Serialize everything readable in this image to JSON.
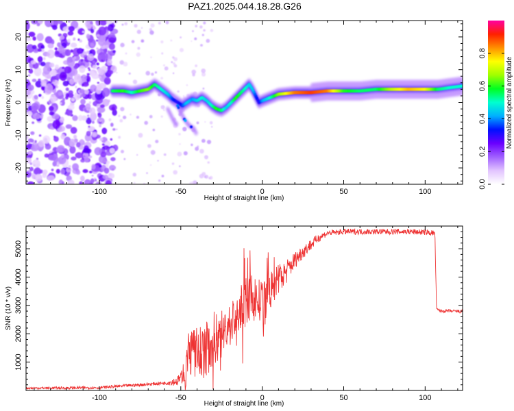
{
  "title": "PAZ1.2025.044.18.28.G26",
  "chart_data": [
    {
      "type": "heatmap",
      "name": "spectrogram",
      "xlabel": "Height of straight line (km)",
      "ylabel": "Frequency (Hz)",
      "xlim": [
        -145,
        123
      ],
      "ylim": [
        -25,
        25
      ],
      "xticks": [
        -100,
        -50,
        0,
        50,
        100
      ],
      "yticks": [
        -20,
        -10,
        0,
        10,
        20
      ],
      "colorbar": {
        "label": "Normalized spectral amplitude",
        "range": [
          0,
          1
        ],
        "ticks": [
          0.0,
          0.2,
          0.4,
          0.6,
          0.8
        ],
        "colors": [
          "#ffffff",
          "#e2c4ff",
          "#a060ff",
          "#6a00ff",
          "#0010ff",
          "#00b0ff",
          "#00ffd0",
          "#00ff20",
          "#a0ff00",
          "#ffff00",
          "#ff9000",
          "#ff2000",
          "#ff00a0"
        ]
      },
      "ridge": {
        "x": [
          -92,
          -85,
          -80,
          -75,
          -70,
          -66,
          -62,
          -58,
          -55,
          -52,
          -49,
          -46,
          -43,
          -40,
          -37,
          -34,
          -31,
          -28,
          -25,
          -22,
          -19,
          -16,
          -13,
          -10,
          -8,
          -6,
          -4,
          -2,
          0,
          5,
          10,
          20,
          30,
          40,
          50,
          60,
          70,
          80,
          90,
          100,
          108,
          115,
          123
        ],
        "y": [
          3.5,
          3.5,
          3.0,
          3.5,
          4.0,
          5.5,
          4.0,
          2.5,
          1.0,
          0.0,
          -1.0,
          0.0,
          1.0,
          0.5,
          1.5,
          0.5,
          -1.0,
          -2.0,
          -2.5,
          -1.5,
          0.0,
          1.5,
          3.0,
          4.5,
          5.5,
          4.0,
          2.0,
          0.0,
          0.5,
          1.5,
          2.5,
          3.0,
          3.0,
          3.5,
          3.5,
          3.5,
          4.0,
          4.0,
          4.0,
          4.0,
          4.0,
          4.5,
          5.0
        ],
        "amplitude": [
          0.55,
          0.6,
          0.5,
          0.6,
          0.65,
          0.55,
          0.5,
          0.45,
          0.35,
          0.3,
          0.35,
          0.45,
          0.4,
          0.45,
          0.5,
          0.45,
          0.5,
          0.6,
          0.55,
          0.45,
          0.5,
          0.6,
          0.55,
          0.5,
          0.45,
          0.45,
          0.35,
          0.3,
          0.4,
          0.5,
          0.65,
          0.85,
          0.9,
          0.85,
          0.6,
          0.55,
          0.55,
          0.7,
          0.8,
          0.75,
          0.55,
          0.5,
          0.5
        ]
      },
      "branches": [
        {
          "x": [
            -55,
            -52,
            -50,
            -48,
            -45,
            -42,
            -40
          ],
          "y": [
            2,
            -1,
            -3,
            -5,
            -7,
            -8,
            -10
          ]
        },
        {
          "x": [
            -58,
            -56,
            -54,
            -52
          ],
          "y": [
            -2,
            -4,
            -6,
            -7
          ]
        }
      ]
    },
    {
      "type": "line",
      "name": "snr",
      "xlabel": "Height of straight line (km)",
      "ylabel": "SNR (10 * v/v)",
      "xlim": [
        -145,
        123
      ],
      "ylim": [
        0,
        5800
      ],
      "xticks": [
        -100,
        -50,
        0,
        50,
        100
      ],
      "yticks": [
        1000,
        2000,
        3000,
        4000,
        5000
      ],
      "line_color": "#ee3333",
      "trend": {
        "x": [
          -145,
          -120,
          -100,
          -80,
          -60,
          -52,
          -47,
          -45,
          -40,
          -35,
          -30,
          -25,
          -20,
          -15,
          -10,
          -5,
          0,
          5,
          10,
          15,
          20,
          25,
          30,
          35,
          40,
          50,
          60,
          70,
          80,
          90,
          100,
          106,
          107,
          110,
          115,
          123
        ],
        "y": [
          80,
          90,
          100,
          180,
          260,
          330,
          700,
          1400,
          1300,
          1400,
          1800,
          2000,
          2300,
          2700,
          3100,
          3300,
          3000,
          3500,
          3900,
          4200,
          4600,
          4900,
          5150,
          5400,
          5550,
          5600,
          5600,
          5600,
          5600,
          5600,
          5580,
          5550,
          2850,
          2800,
          2800,
          2780
        ]
      },
      "noise_amplitude": {
        "x": [
          -145,
          -60,
          -50,
          -45,
          -30,
          -20,
          -5,
          5,
          20,
          30,
          40,
          106,
          107,
          123
        ],
        "y": [
          40,
          60,
          200,
          900,
          1000,
          800,
          900,
          700,
          300,
          200,
          100,
          100,
          60,
          60
        ]
      }
    }
  ]
}
